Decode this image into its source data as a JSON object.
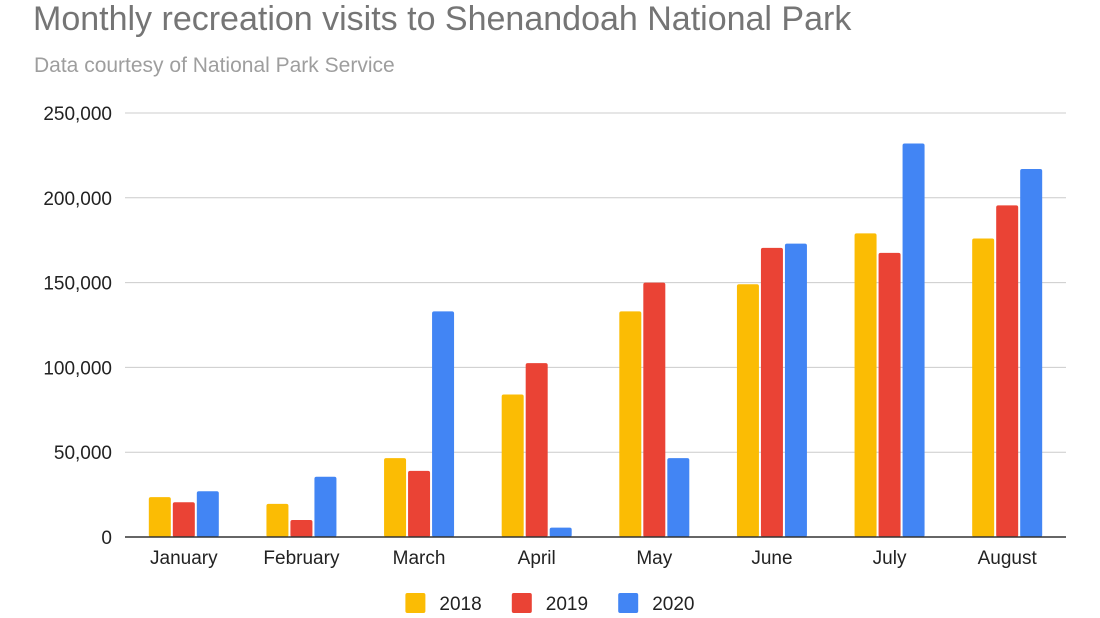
{
  "chart_data": {
    "type": "bar",
    "title": "Monthly recreation visits to Shenandoah National Park",
    "subtitle": "Data courtesy of National Park Service",
    "xlabel": "",
    "ylabel": "",
    "categories": [
      "January",
      "February",
      "March",
      "April",
      "May",
      "June",
      "July",
      "August"
    ],
    "ylim": [
      0,
      250000
    ],
    "yticks": [
      0,
      50000,
      100000,
      150000,
      200000,
      250000
    ],
    "ytick_labels": [
      "0",
      "50,000",
      "100,000",
      "150,000",
      "200,000",
      "250,000"
    ],
    "grid": true,
    "legend_position": "bottom",
    "series": [
      {
        "name": "2018",
        "color": "#FBBC04",
        "values": [
          23500,
          19500,
          46500,
          84000,
          133000,
          149000,
          179000,
          176000
        ]
      },
      {
        "name": "2019",
        "color": "#EA4335",
        "values": [
          20500,
          10000,
          39000,
          102500,
          150000,
          170500,
          167500,
          195500
        ]
      },
      {
        "name": "2020",
        "color": "#4285F4",
        "values": [
          27000,
          35500,
          133000,
          5500,
          46500,
          173000,
          232000,
          217000
        ]
      }
    ]
  }
}
